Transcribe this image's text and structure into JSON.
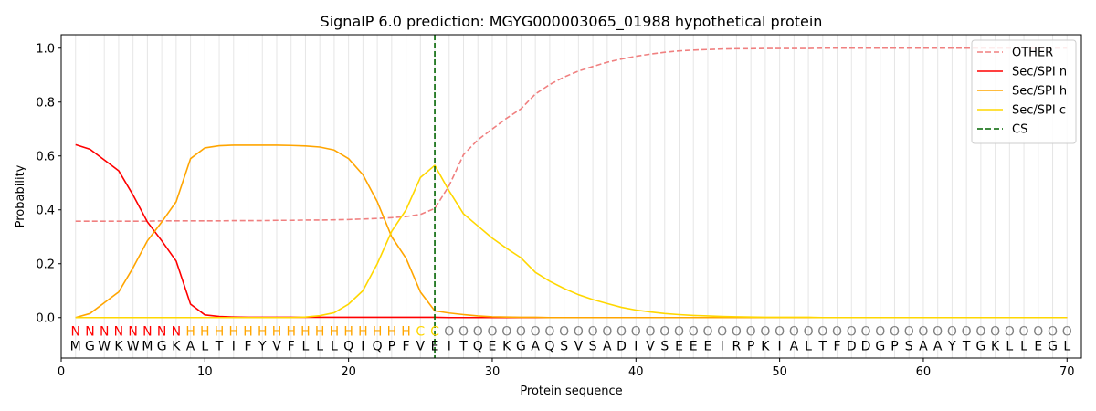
{
  "chart_data": {
    "type": "line",
    "title": "SignalP 6.0 prediction: MGYG000003065_01988 hypothetical protein",
    "xlabel": "Protein sequence",
    "ylabel": "Probability",
    "xlim": [
      0,
      71
    ],
    "ylim": [
      -0.15,
      1.05
    ],
    "xticks": [
      0,
      10,
      20,
      30,
      40,
      50,
      60,
      70
    ],
    "yticks": [
      0.0,
      0.2,
      0.4,
      0.6,
      0.8,
      1.0
    ],
    "xtick_labels": [
      "0",
      "10",
      "20",
      "30",
      "40",
      "50",
      "60",
      "70"
    ],
    "ytick_labels": [
      "0.0",
      "0.2",
      "0.4",
      "0.6",
      "0.8",
      "1.0"
    ],
    "grid": "vertical lines at each residue",
    "legend_position": "top-right",
    "x": [
      1,
      2,
      3,
      4,
      5,
      6,
      7,
      8,
      9,
      10,
      11,
      12,
      13,
      14,
      15,
      16,
      17,
      18,
      19,
      20,
      21,
      22,
      23,
      24,
      25,
      26,
      27,
      28,
      29,
      30,
      31,
      32,
      33,
      34,
      35,
      36,
      37,
      38,
      39,
      40,
      41,
      42,
      43,
      44,
      45,
      46,
      47,
      48,
      49,
      50,
      51,
      52,
      53,
      54,
      55,
      56,
      57,
      58,
      59,
      60,
      61,
      62,
      63,
      64,
      65,
      66,
      67,
      68,
      69,
      70
    ],
    "series": [
      {
        "name": "OTHER",
        "color": "#f08080",
        "style": "dashed",
        "values": [
          0.358,
          0.358,
          0.358,
          0.358,
          0.358,
          0.358,
          0.359,
          0.359,
          0.359,
          0.359,
          0.359,
          0.36,
          0.36,
          0.36,
          0.361,
          0.361,
          0.362,
          0.362,
          0.363,
          0.364,
          0.366,
          0.368,
          0.371,
          0.375,
          0.383,
          0.405,
          0.49,
          0.605,
          0.66,
          0.7,
          0.74,
          0.775,
          0.83,
          0.865,
          0.893,
          0.915,
          0.932,
          0.948,
          0.96,
          0.97,
          0.978,
          0.985,
          0.99,
          0.993,
          0.995,
          0.997,
          0.998,
          0.998,
          0.999,
          0.999,
          0.999,
          0.999,
          1.0,
          1.0,
          1.0,
          1.0,
          1.0,
          1.0,
          1.0,
          1.0,
          1.0,
          1.0,
          1.0,
          1.0,
          1.0,
          1.0,
          1.0,
          1.0,
          1.0,
          1.0
        ]
      },
      {
        "name": "Sec/SPI n",
        "color": "#ff0000",
        "style": "solid",
        "values": [
          0.642,
          0.625,
          0.585,
          0.545,
          0.455,
          0.355,
          0.285,
          0.21,
          0.05,
          0.01,
          0.004,
          0.002,
          0.001,
          0.001,
          0.001,
          0.001,
          0.001,
          0.001,
          0.001,
          0.001,
          0.001,
          0.001,
          0.001,
          0.001,
          0.001,
          0.001,
          0.0,
          0.0,
          0.0,
          0.0,
          0.0,
          0.0,
          0.0,
          0.0,
          0.0,
          0.0,
          0.0,
          0.0,
          0.0,
          0.0,
          0.0,
          0.0,
          0.0,
          0.0,
          0.0,
          0.0,
          0.0,
          0.0,
          0.0,
          0.0,
          0.0,
          0.0,
          0.0,
          0.0,
          0.0,
          0.0,
          0.0,
          0.0,
          0.0,
          0.0,
          0.0,
          0.0,
          0.0,
          0.0,
          0.0,
          0.0,
          0.0,
          0.0,
          0.0,
          0.0
        ]
      },
      {
        "name": "Sec/SPI h",
        "color": "#ffa500",
        "style": "solid",
        "values": [
          0.0,
          0.015,
          0.055,
          0.095,
          0.185,
          0.285,
          0.355,
          0.43,
          0.59,
          0.63,
          0.638,
          0.64,
          0.64,
          0.64,
          0.64,
          0.639,
          0.637,
          0.633,
          0.622,
          0.59,
          0.53,
          0.43,
          0.3,
          0.22,
          0.095,
          0.025,
          0.017,
          0.011,
          0.006,
          0.003,
          0.002,
          0.001,
          0.001,
          0.0,
          0.0,
          0.0,
          0.0,
          0.0,
          0.0,
          0.0,
          0.0,
          0.0,
          0.0,
          0.0,
          0.0,
          0.0,
          0.0,
          0.0,
          0.0,
          0.0,
          0.0,
          0.0,
          0.0,
          0.0,
          0.0,
          0.0,
          0.0,
          0.0,
          0.0,
          0.0,
          0.0,
          0.0,
          0.0,
          0.0,
          0.0,
          0.0,
          0.0,
          0.0,
          0.0,
          0.0
        ]
      },
      {
        "name": "Sec/SPI c",
        "color": "#ffd700",
        "style": "solid",
        "values": [
          0.0,
          0.0,
          0.0,
          0.0,
          0.0,
          0.0,
          0.0,
          0.0,
          0.0,
          0.0,
          0.0,
          0.0,
          0.0,
          0.0,
          0.0,
          0.0,
          0.002,
          0.007,
          0.018,
          0.05,
          0.1,
          0.2,
          0.32,
          0.4,
          0.52,
          0.565,
          0.47,
          0.385,
          0.34,
          0.295,
          0.257,
          0.222,
          0.168,
          0.135,
          0.108,
          0.085,
          0.067,
          0.052,
          0.038,
          0.028,
          0.021,
          0.015,
          0.011,
          0.008,
          0.006,
          0.004,
          0.003,
          0.002,
          0.001,
          0.001,
          0.001,
          0.001,
          0.0,
          0.0,
          0.0,
          0.0,
          0.0,
          0.0,
          0.0,
          0.0,
          0.0,
          0.0,
          0.0,
          0.0,
          0.0,
          0.0,
          0.0,
          0.0,
          0.0,
          0.0
        ]
      }
    ],
    "cleavage_site": {
      "name": "CS",
      "x": 26,
      "color": "#006400",
      "style": "dashed"
    },
    "sequence": "MGWKWMGKALTIFYVFLLLQIQPFVEITQEKGAQSVSADIVSEEEIRPKIALTFDDGPSAAYTGKLLEGL",
    "labels": "NNNNNNNNHHHHHHHHHHHHHHHHCCOOOOOOOOOOOOOOOOOOOOOOOOOOOOOOOOOOOOOOOOOOOO",
    "label_colors": {
      "N": "#ff0000",
      "H": "#ffa500",
      "C": "#ffd700",
      "O": "#808080"
    }
  }
}
